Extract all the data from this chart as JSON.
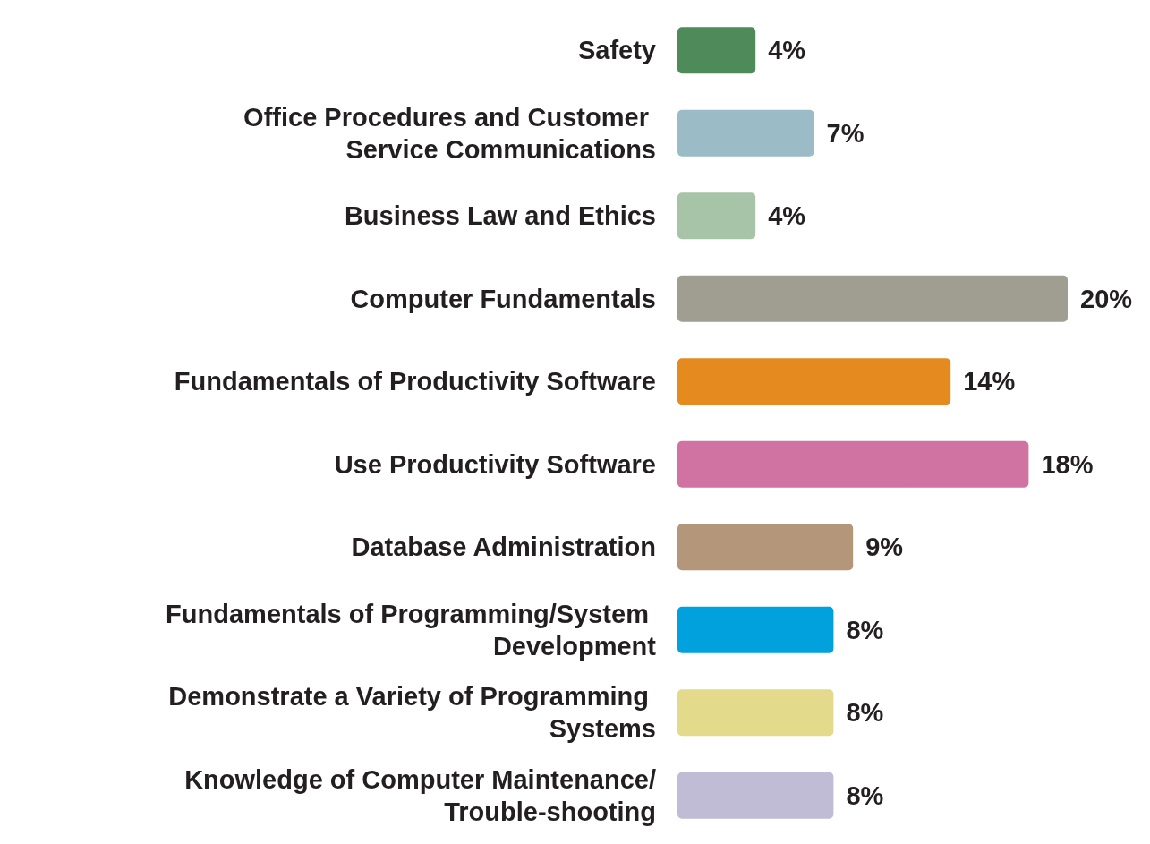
{
  "chart_data": {
    "type": "bar",
    "orientation": "horizontal",
    "categories": [
      "Safety",
      "Office Procedures and Customer Service Communications",
      "Business Law and Ethics",
      "Computer Fundamentals",
      "Fundamentals of Productivity Software",
      "Use Productivity Software",
      "Database Administration",
      "Fundamentals of Programming/System Development",
      "Demonstrate a Variety of Programming Systems",
      "Knowledge of Computer Maintenance/Trouble-shooting"
    ],
    "values": [
      4,
      7,
      4,
      20,
      14,
      18,
      9,
      8,
      8,
      8
    ],
    "value_labels": [
      "4%",
      "7%",
      "4%",
      "20%",
      "14%",
      "18%",
      "9%",
      "8%",
      "8%",
      "8%"
    ],
    "colors": [
      "#4e8a5a",
      "#9bbcc6",
      "#a8c4a8",
      "#a09e90",
      "#e58a1e",
      "#d073a3",
      "#b4967a",
      "#00a1dc",
      "#e4da8c",
      "#c0bcd6"
    ]
  }
}
